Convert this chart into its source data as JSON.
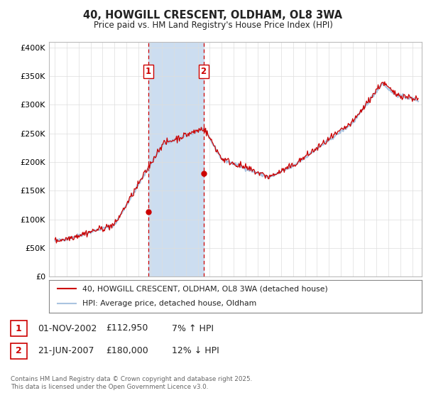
{
  "title_line1": "40, HOWGILL CRESCENT, OLDHAM, OL8 3WA",
  "title_line2": "Price paid vs. HM Land Registry's House Price Index (HPI)",
  "ylabel_ticks": [
    "£0",
    "£50K",
    "£100K",
    "£150K",
    "£200K",
    "£250K",
    "£300K",
    "£350K",
    "£400K"
  ],
  "ytick_values": [
    0,
    50000,
    100000,
    150000,
    200000,
    250000,
    300000,
    350000,
    400000
  ],
  "ylim": [
    0,
    410000
  ],
  "xlim_start": 1994.5,
  "xlim_end": 2025.8,
  "hpi_color": "#aac4e0",
  "price_color": "#cc0000",
  "sale1_x": 2002.833,
  "sale1_y": 112950,
  "sale2_x": 2007.472,
  "sale2_y": 180000,
  "sale1_label": "1",
  "sale2_label": "2",
  "vline_color": "#cc0000",
  "shade_color": "#ccddf0",
  "legend_line1": "40, HOWGILL CRESCENT, OLDHAM, OL8 3WA (detached house)",
  "legend_line2": "HPI: Average price, detached house, Oldham",
  "annotation1_num": "1",
  "annotation1_date": "01-NOV-2002",
  "annotation1_price": "£112,950",
  "annotation1_hpi": "7% ↑ HPI",
  "annotation2_num": "2",
  "annotation2_date": "21-JUN-2007",
  "annotation2_price": "£180,000",
  "annotation2_hpi": "12% ↓ HPI",
  "footnote": "Contains HM Land Registry data © Crown copyright and database right 2025.\nThis data is licensed under the Open Government Licence v3.0.",
  "background_color": "#ffffff",
  "plot_bg_color": "#ffffff",
  "grid_color": "#dddddd"
}
